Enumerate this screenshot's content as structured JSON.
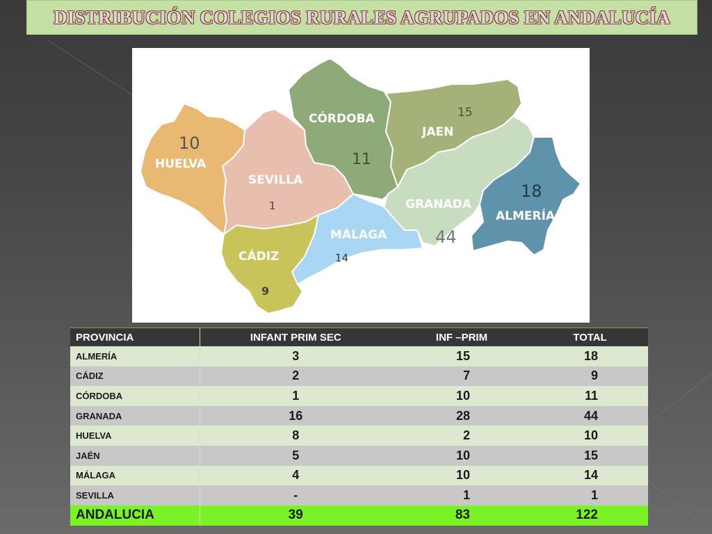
{
  "title": "DISTRIBUCIÓN COLEGIOS RURALES AGRUPADOS EN ANDALUCÍA",
  "map": {
    "provinces": [
      {
        "name": "HUELVA",
        "count": "10",
        "color": "#e9b872"
      },
      {
        "name": "SEVILLA",
        "count": "1",
        "color": "#e8bfae"
      },
      {
        "name": "CÓRDOBA",
        "count": "11",
        "color": "#8eaa78"
      },
      {
        "name": "JAEN",
        "count": "15",
        "color": "#a4b27a"
      },
      {
        "name": "GRANADA",
        "count": "44",
        "color": "#c8ddc0"
      },
      {
        "name": "ALMERÍA",
        "count": "18",
        "color": "#5e93ab"
      },
      {
        "name": "MÁLAGA",
        "count": "14",
        "color": "#a9d6f2"
      },
      {
        "name": "CÁDIZ",
        "count": "9",
        "color": "#c8c45a"
      }
    ]
  },
  "table": {
    "headers": [
      "PROVINCIA",
      "INFANT PRIM SEC",
      "INF –PRIM",
      "TOTAL"
    ],
    "rows": [
      [
        "ALMERÍA",
        "3",
        "15",
        "18"
      ],
      [
        "CÁDIZ",
        "2",
        "7",
        "9"
      ],
      [
        "CÓRDOBA",
        "1",
        "10",
        "11"
      ],
      [
        "GRANADA",
        "16",
        "28",
        "44"
      ],
      [
        "HUELVA",
        "8",
        "2",
        "10"
      ],
      [
        "JAÉN",
        "5",
        "10",
        "15"
      ],
      [
        "MÁLAGA",
        "4",
        "10",
        "14"
      ],
      [
        "SEVILLA",
        "-",
        "1",
        "1"
      ]
    ],
    "total": [
      "ANDALUCIA",
      "39",
      "83",
      "122"
    ]
  }
}
